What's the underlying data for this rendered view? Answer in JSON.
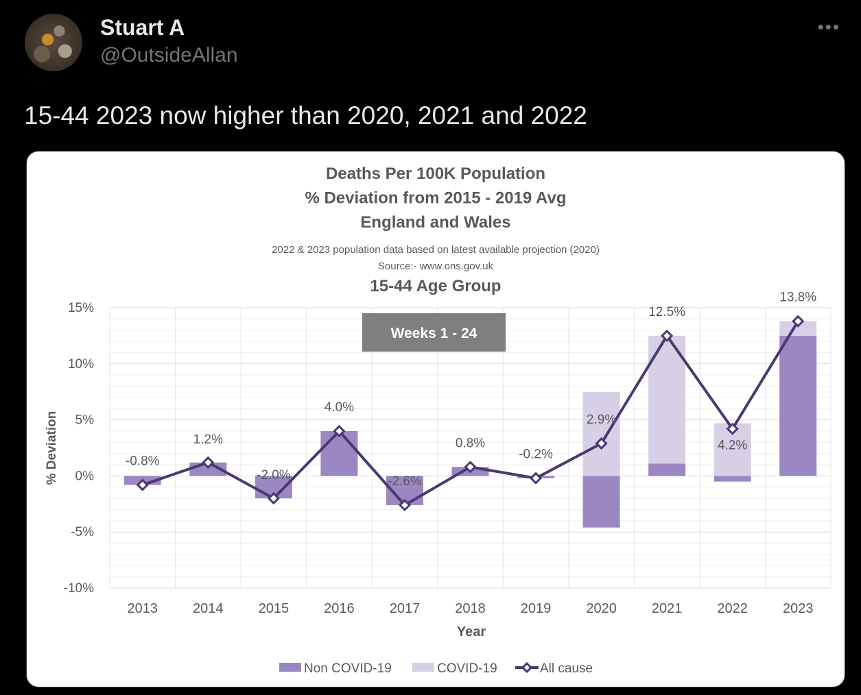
{
  "tweet": {
    "author_name": "Stuart A",
    "author_handle": "@OutsideAllan",
    "more_icon": "more-horizontal-icon",
    "more_label": "•••",
    "text": "15-44 2023 now higher than 2020, 2021 and 2022"
  },
  "chart_data": {
    "type": "bar",
    "title_lines": [
      "Deaths Per 100K Population",
      "% Deviation from 2015 - 2019 Avg",
      "England and Wales"
    ],
    "subtitle_lines": [
      "2022 & 2023 population data based on latest available projection (2020)",
      "Source:- www.ons.gov.uk"
    ],
    "group_title": "15-44 Age Group",
    "annotation": "Weeks 1 - 24",
    "xlabel": "Year",
    "ylabel": "% Deviation",
    "ylim": [
      -10,
      15
    ],
    "yticks": [
      15,
      10,
      5,
      0,
      -5,
      -10
    ],
    "ytick_labels": [
      "15%",
      "10%",
      "5%",
      "0%",
      "-5%",
      "-10%"
    ],
    "grid": true,
    "legend_position": "bottom",
    "categories": [
      "2013",
      "2014",
      "2015",
      "2016",
      "2017",
      "2018",
      "2019",
      "2020",
      "2021",
      "2022",
      "2023"
    ],
    "series": [
      {
        "name": "Non COVID-19",
        "kind": "bar",
        "color": "#9b87c2",
        "values": [
          -0.8,
          1.2,
          -2.0,
          4.0,
          -2.6,
          0.8,
          -0.2,
          -4.6,
          1.1,
          -0.5,
          12.5
        ]
      },
      {
        "name": "COVID-19",
        "kind": "bar",
        "color": "#d6cfe6",
        "values": [
          0,
          0,
          0,
          0,
          0,
          0,
          0,
          7.5,
          11.4,
          4.7,
          1.3
        ]
      },
      {
        "name": "All cause",
        "kind": "line",
        "color": "#4a3870",
        "values": [
          -0.8,
          1.2,
          -2.0,
          4.0,
          -2.6,
          0.8,
          -0.2,
          2.9,
          12.5,
          4.2,
          13.8
        ]
      }
    ],
    "data_labels": [
      "-0.8%",
      "1.2%",
      "-2.0%",
      "4.0%",
      "-2.6%",
      "0.8%",
      "-0.2%",
      "2.9%",
      "12.5%",
      "4.2%",
      "13.8%"
    ]
  }
}
